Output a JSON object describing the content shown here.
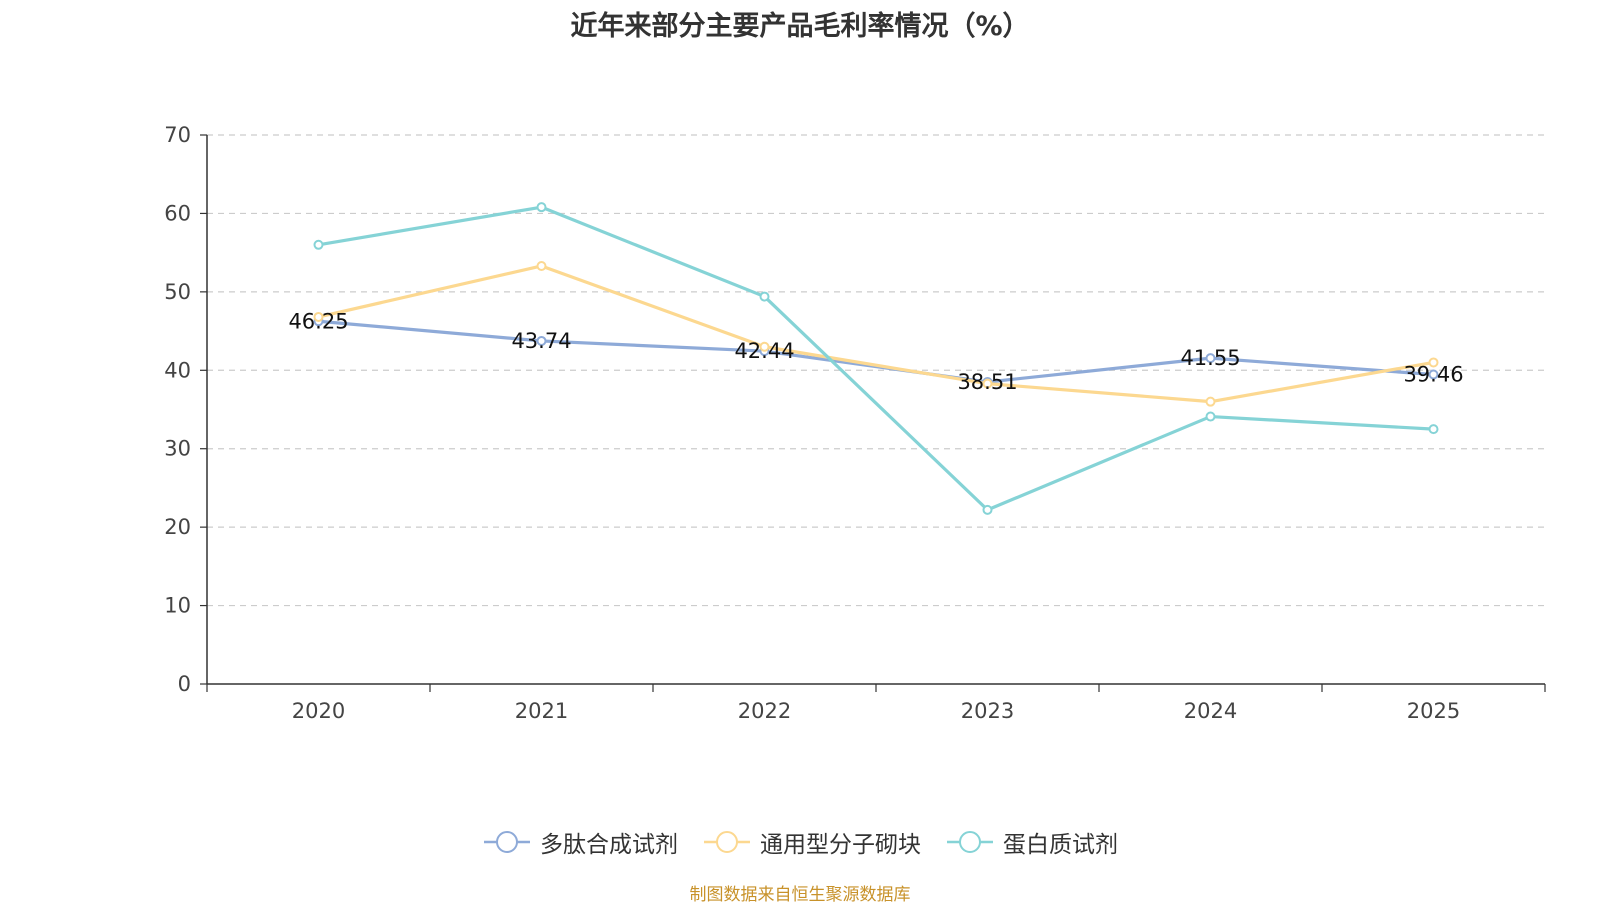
{
  "chart_data": {
    "type": "line",
    "title": "近年来部分主要产品毛利率情况（%）",
    "categories": [
      "2020",
      "2021",
      "2022",
      "2023",
      "2024",
      "2025"
    ],
    "ylim": [
      0,
      70
    ],
    "yticks": [
      0,
      10,
      20,
      30,
      40,
      50,
      60,
      70
    ],
    "grid": true,
    "legend_position": "bottom",
    "series": [
      {
        "name": "多肽合成试剂",
        "color": "#8eaad8",
        "values": [
          46.25,
          43.74,
          42.44,
          38.51,
          41.55,
          39.46
        ],
        "labels": [
          "46.25",
          "43.74",
          "42.44",
          "38.51",
          "41.55",
          "39.46"
        ]
      },
      {
        "name": "通用型分子砌块",
        "color": "#fcd890",
        "values": [
          46.8,
          53.3,
          43.0,
          38.3,
          36.0,
          41.0
        ]
      },
      {
        "name": "蛋白质试剂",
        "color": "#85d3d6",
        "values": [
          56.0,
          60.8,
          49.4,
          22.2,
          34.1,
          32.5
        ]
      }
    ]
  },
  "source": "制图数据来自恒生聚源数据库"
}
